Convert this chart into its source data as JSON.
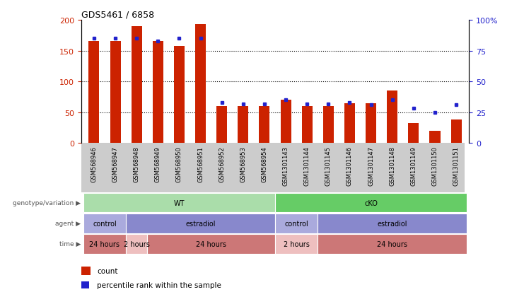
{
  "title": "GDS5461 / 6858",
  "samples": [
    "GSM568946",
    "GSM568947",
    "GSM568948",
    "GSM568949",
    "GSM568950",
    "GSM568951",
    "GSM568952",
    "GSM568953",
    "GSM568954",
    "GSM1301143",
    "GSM1301144",
    "GSM1301145",
    "GSM1301146",
    "GSM1301147",
    "GSM1301148",
    "GSM1301149",
    "GSM1301150",
    "GSM1301151"
  ],
  "count_values": [
    165,
    165,
    190,
    165,
    158,
    193,
    60,
    60,
    60,
    70,
    60,
    60,
    65,
    65,
    85,
    32,
    20,
    38
  ],
  "percentile_values": [
    85,
    85,
    85,
    83,
    85,
    85,
    33,
    32,
    32,
    35,
    32,
    32,
    33,
    31,
    35,
    28,
    25,
    31
  ],
  "bar_color": "#cc2200",
  "dot_color": "#2222cc",
  "ylim_left": [
    0,
    200
  ],
  "ylim_right": [
    0,
    100
  ],
  "yticks_left": [
    0,
    50,
    100,
    150,
    200
  ],
  "yticks_right": [
    0,
    25,
    50,
    75,
    100
  ],
  "grid_values": [
    50,
    100,
    150
  ],
  "genotype_groups": [
    {
      "label": "WT",
      "start": 0,
      "end": 8,
      "color": "#aaddaa"
    },
    {
      "label": "cKO",
      "start": 9,
      "end": 17,
      "color": "#66cc66"
    }
  ],
  "agent_groups": [
    {
      "label": "control",
      "start": 0,
      "end": 1,
      "color": "#aaaadd"
    },
    {
      "label": "estradiol",
      "start": 2,
      "end": 8,
      "color": "#8888cc"
    },
    {
      "label": "control",
      "start": 9,
      "end": 10,
      "color": "#aaaadd"
    },
    {
      "label": "estradiol",
      "start": 11,
      "end": 17,
      "color": "#8888cc"
    }
  ],
  "time_groups": [
    {
      "label": "24 hours",
      "start": 0,
      "end": 1,
      "color": "#cc7777"
    },
    {
      "label": "2 hours",
      "start": 2,
      "end": 2,
      "color": "#eebfbf"
    },
    {
      "label": "24 hours",
      "start": 3,
      "end": 8,
      "color": "#cc7777"
    },
    {
      "label": "2 hours",
      "start": 9,
      "end": 10,
      "color": "#eebfbf"
    },
    {
      "label": "24 hours",
      "start": 11,
      "end": 17,
      "color": "#cc7777"
    }
  ],
  "row_labels": [
    "genotype/variation",
    "agent",
    "time"
  ],
  "legend_count_color": "#cc2200",
  "legend_dot_color": "#2222cc",
  "bar_width": 0.5,
  "xtick_bg_color": "#cccccc"
}
